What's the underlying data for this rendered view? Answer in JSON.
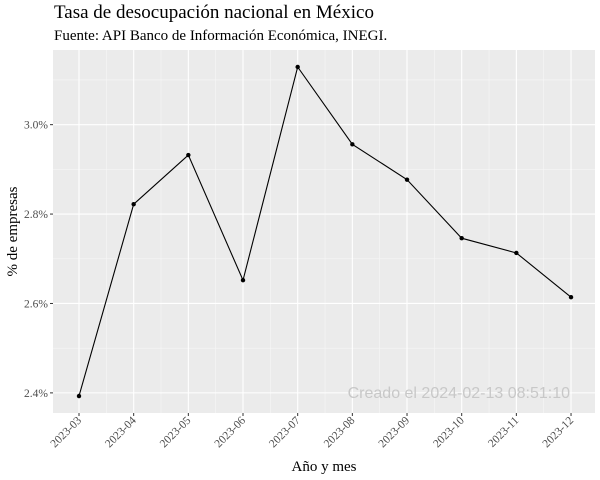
{
  "chart_data": {
    "type": "line",
    "title": "Tasa de desocupación nacional en México",
    "subtitle": "Fuente: API Banco de Información Económica, INEGI.",
    "xlabel": "Año y mes",
    "ylabel": "% de empresas",
    "categories": [
      "2023-03",
      "2023-04",
      "2023-05",
      "2023-06",
      "2023-07",
      "2023-08",
      "2023-09",
      "2023-10",
      "2023-11",
      "2023-12"
    ],
    "series": [
      {
        "values": [
          2.393,
          2.822,
          2.932,
          2.652,
          3.129,
          2.956,
          2.877,
          2.746,
          2.713,
          2.614
        ]
      }
    ],
    "y_ticks": [
      2.4,
      2.6,
      2.8,
      3.0
    ],
    "y_tick_labels": [
      "2.4%",
      "2.6%",
      "2.8%",
      "3.0%"
    ],
    "ylim": [
      2.355,
      3.167
    ],
    "grid": true,
    "panel_color": "#ebebeb",
    "line_color": "#000000",
    "annotation": "Creado el  2024-02-13 08:51:10"
  }
}
